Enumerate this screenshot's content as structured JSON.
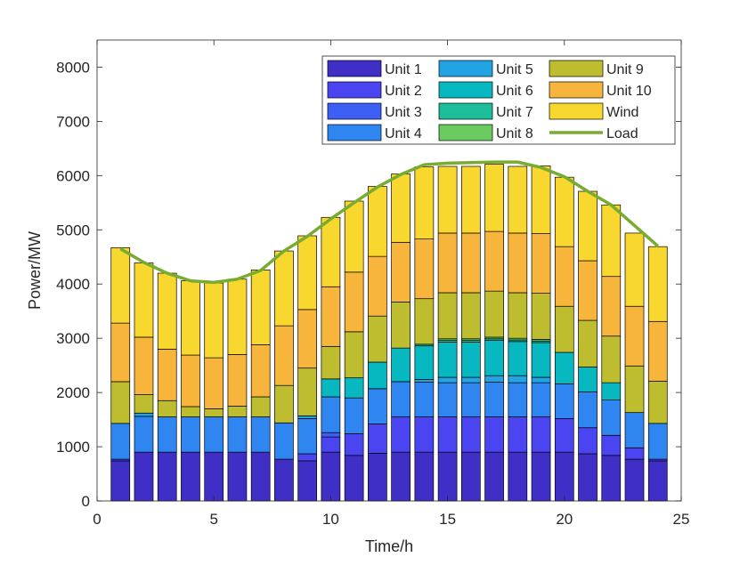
{
  "chart_data": {
    "type": "bar",
    "stacked": true,
    "xlabel": "Time/h",
    "ylabel": "Power/MW",
    "xlim": [
      0,
      25
    ],
    "ylim": [
      0,
      8500
    ],
    "xticks": [
      0,
      5,
      10,
      15,
      20,
      25
    ],
    "yticks": [
      0,
      1000,
      2000,
      3000,
      4000,
      5000,
      6000,
      7000,
      8000
    ],
    "grid": false,
    "legend_position": "top-right",
    "x": [
      1,
      2,
      3,
      4,
      5,
      6,
      7,
      8,
      9,
      10,
      11,
      12,
      13,
      14,
      15,
      16,
      17,
      18,
      19,
      20,
      21,
      22,
      23,
      24
    ],
    "series": [
      {
        "name": "Unit 1",
        "color": "#3f2fc6",
        "values": [
          740,
          900,
          900,
          900,
          900,
          900,
          900,
          770,
          740,
          900,
          840,
          880,
          900,
          900,
          900,
          900,
          900,
          900,
          900,
          900,
          870,
          840,
          770,
          740
        ]
      },
      {
        "name": "Unit 2",
        "color": "#4a45f0",
        "values": [
          30,
          0,
          0,
          0,
          0,
          0,
          0,
          0,
          130,
          280,
          400,
          540,
          650,
          650,
          650,
          650,
          650,
          650,
          650,
          620,
          480,
          370,
          210,
          30
        ]
      },
      {
        "name": "Unit 3",
        "color": "#3d5ff5",
        "values": [
          0,
          0,
          0,
          0,
          0,
          0,
          0,
          0,
          0,
          80,
          0,
          0,
          0,
          0,
          0,
          0,
          0,
          0,
          0,
          0,
          0,
          0,
          0,
          0
        ]
      },
      {
        "name": "Unit 4",
        "color": "#2f86f0",
        "values": [
          660,
          660,
          650,
          650,
          650,
          650,
          650,
          670,
          650,
          660,
          660,
          650,
          650,
          640,
          630,
          630,
          640,
          630,
          630,
          640,
          660,
          650,
          650,
          660
        ]
      },
      {
        "name": "Unit 5",
        "color": "#22a3e3",
        "values": [
          0,
          60,
          0,
          0,
          0,
          0,
          0,
          0,
          50,
          0,
          0,
          0,
          0,
          50,
          100,
          100,
          120,
          130,
          100,
          0,
          0,
          0,
          0,
          0
        ]
      },
      {
        "name": "Unit 6",
        "color": "#08b8c0",
        "values": [
          0,
          0,
          0,
          0,
          0,
          0,
          0,
          0,
          0,
          330,
          370,
          490,
          620,
          620,
          650,
          650,
          650,
          630,
          640,
          580,
          460,
          320,
          0,
          0
        ]
      },
      {
        "name": "Unit 7",
        "color": "#1dbf9a",
        "values": [
          0,
          0,
          0,
          0,
          0,
          0,
          0,
          0,
          0,
          0,
          0,
          0,
          0,
          30,
          30,
          30,
          30,
          30,
          30,
          0,
          0,
          0,
          0,
          0
        ]
      },
      {
        "name": "Unit 8",
        "color": "#6acb5f",
        "values": [
          0,
          0,
          0,
          0,
          0,
          0,
          0,
          0,
          0,
          0,
          0,
          0,
          0,
          0,
          30,
          30,
          30,
          30,
          30,
          0,
          0,
          0,
          0,
          0
        ]
      },
      {
        "name": "Unit 9",
        "color": "#bdbd2f",
        "values": [
          770,
          340,
          300,
          190,
          150,
          200,
          370,
          690,
          880,
          600,
          850,
          850,
          850,
          840,
          850,
          850,
          850,
          840,
          850,
          850,
          860,
          860,
          860,
          780
        ]
      },
      {
        "name": "Unit 10",
        "color": "#f7b53c",
        "values": [
          1080,
          1060,
          950,
          950,
          940,
          950,
          960,
          1100,
          1080,
          1100,
          1100,
          1100,
          1100,
          1100,
          1100,
          1100,
          1100,
          1100,
          1100,
          1100,
          1100,
          1100,
          1100,
          1100
        ]
      },
      {
        "name": "Wind",
        "color": "#f8d72e",
        "values": [
          1390,
          1370,
          1400,
          1370,
          1380,
          1390,
          1380,
          1380,
          1360,
          1280,
          1310,
          1290,
          1260,
          1330,
          1230,
          1230,
          1240,
          1230,
          1250,
          1280,
          1280,
          1320,
          1350,
          1380
        ]
      }
    ],
    "load": {
      "name": "Load",
      "color": "#77ac30",
      "values": [
        4650,
        4400,
        4200,
        4060,
        4030,
        4090,
        4250,
        4610,
        4880,
        5200,
        5500,
        5790,
        6020,
        6200,
        6230,
        6240,
        6250,
        6250,
        6150,
        5980,
        5710,
        5460,
        5080,
        4700
      ]
    }
  }
}
